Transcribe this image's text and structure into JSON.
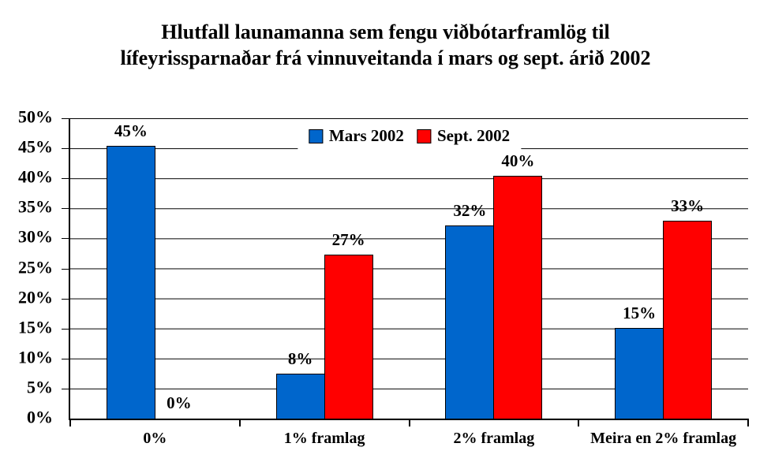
{
  "title": {
    "line1": "Hlutfall launamanna sem fengu viðbótarframlög til",
    "line2": "lífeyrissparnaðar frá vinnuveitanda í mars og sept. árið 2002"
  },
  "colors": {
    "mars_blue": "#0066CC",
    "sept_red": "#FF0000",
    "axis": "#000000",
    "background": "#FFFFFF"
  },
  "chart_data": {
    "type": "bar",
    "title": "Hlutfall launamanna sem fengu viðbótarframlög til lífeyrissparnaðar frá vinnuveitanda í mars og sept. árið 2002",
    "categories": [
      "0%",
      "1% framlag",
      "2% framlag",
      "Meira en 2% framlag"
    ],
    "series": [
      {
        "name": "Mars 2002",
        "color": "#0066CC",
        "values": [
          45.4,
          7.5,
          32.2,
          15.1
        ],
        "labels": [
          "45%",
          "8%",
          "32%",
          "15%"
        ]
      },
      {
        "name": "Sept. 2002",
        "color": "#FF0000",
        "values": [
          0,
          27.3,
          40.4,
          33
        ],
        "labels": [
          "0%",
          "27%",
          "40%",
          "33%"
        ]
      }
    ],
    "ylim": [
      0,
      50
    ],
    "yticks": [
      "50%",
      "45%",
      "40%",
      "35%",
      "30%",
      "25%",
      "20%",
      "15%",
      "10%",
      "5%",
      "0%"
    ],
    "grid": "horizontal-black-every-5pct",
    "legend_position": "top-center-inside-plot",
    "xlabel": "",
    "ylabel": ""
  }
}
